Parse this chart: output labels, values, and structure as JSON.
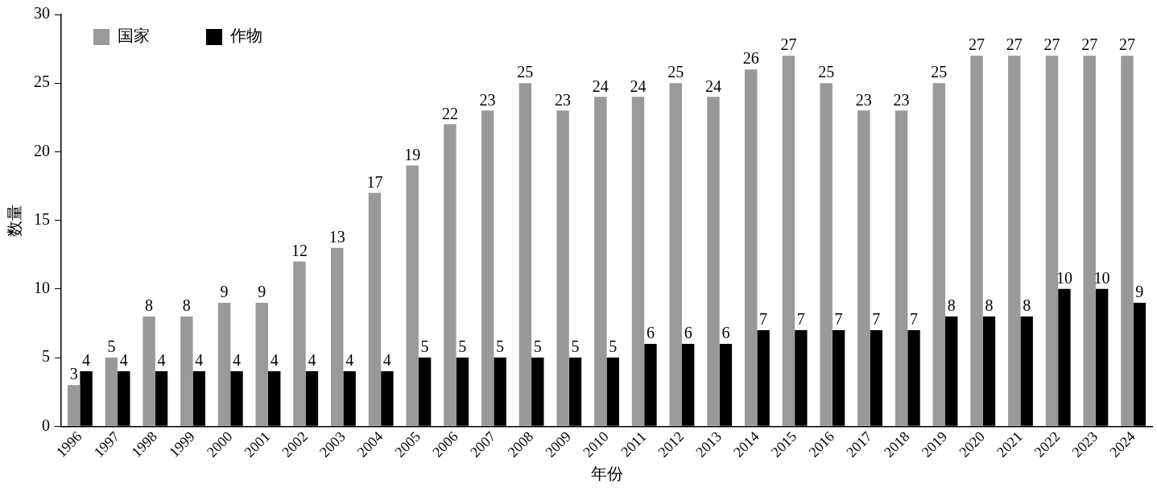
{
  "chart_data": {
    "type": "bar",
    "xlabel": "年份",
    "ylabel": "数量",
    "categories": [
      "1996",
      "1997",
      "1998",
      "1999",
      "2000",
      "2001",
      "2002",
      "2003",
      "2004",
      "2005",
      "2006",
      "2007",
      "2008",
      "2009",
      "2010",
      "2011",
      "2012",
      "2013",
      "2014",
      "2015",
      "2016",
      "2017",
      "2018",
      "2019",
      "2020",
      "2021",
      "2022",
      "2023",
      "2024"
    ],
    "series": [
      {
        "name": "国家",
        "color": "#999999",
        "values": [
          3,
          5,
          8,
          8,
          9,
          9,
          12,
          13,
          17,
          19,
          22,
          23,
          25,
          23,
          24,
          24,
          25,
          24,
          26,
          27,
          25,
          23,
          23,
          25,
          27,
          27,
          27,
          27,
          27
        ]
      },
      {
        "name": "作物",
        "color": "#000000",
        "values": [
          4,
          4,
          4,
          4,
          4,
          4,
          4,
          4,
          4,
          5,
          5,
          5,
          5,
          5,
          5,
          6,
          6,
          6,
          7,
          7,
          7,
          7,
          7,
          8,
          8,
          8,
          10,
          10,
          9
        ]
      }
    ],
    "ylim": [
      0,
      30
    ],
    "yticks": [
      0,
      5,
      10,
      15,
      20,
      25,
      30
    ],
    "grid": false,
    "legend": "top left",
    "data_labels": true
  }
}
